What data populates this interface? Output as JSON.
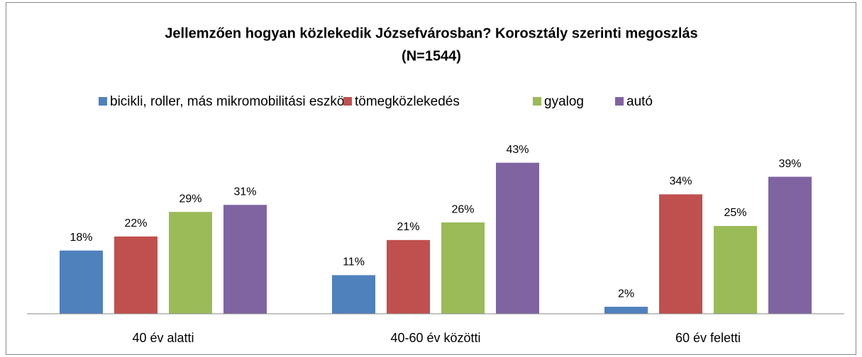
{
  "chart_data": {
    "type": "bar",
    "title": [
      "Jellemzően hogyan közlekedik Józsefvárosban? Korosztály szerinti megoszlás",
      "(N=1544)"
    ],
    "categories": [
      "40 év alatti",
      "40-60 év közötti",
      "60 év feletti"
    ],
    "series": [
      {
        "name": "bicikli, roller, más mikromobilitási eszköz",
        "color": "#4f81bd",
        "values": [
          18,
          11,
          2
        ],
        "value_labels": [
          "18%",
          "11%",
          "2%"
        ]
      },
      {
        "name": "tömegközlekedés",
        "color": "#c0504d",
        "values": [
          22,
          21,
          34
        ],
        "value_labels": [
          "22%",
          "21%",
          "34%"
        ]
      },
      {
        "name": "gyalog",
        "color": "#9bbb59",
        "values": [
          29,
          26,
          25
        ],
        "value_labels": [
          "29%",
          "26%",
          "25%"
        ]
      },
      {
        "name": "autó",
        "color": "#8064a2",
        "values": [
          31,
          43,
          39
        ],
        "value_labels": [
          "31%",
          "43%",
          "39%"
        ]
      }
    ],
    "ylim": [
      0,
      50
    ],
    "legend": "top"
  }
}
